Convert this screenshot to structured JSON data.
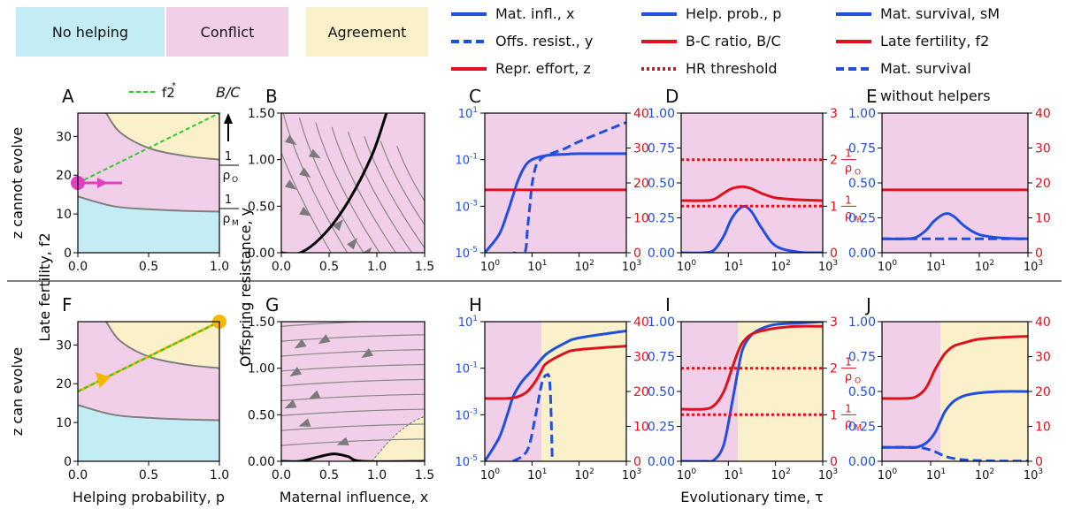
{
  "colors": {
    "no_helping": "#c4ecf5",
    "conflict": "#f1cfe8",
    "agreement": "#faf0ca",
    "blue": "#1f4fe0",
    "red": "#e0101c",
    "green": "#32c832",
    "magenta": "#e040c0",
    "orange": "#f5b800",
    "gray": "#7f7f7f"
  },
  "legend": {
    "regions": [
      "No helping",
      "Conflict",
      "Agreement"
    ],
    "lines": [
      {
        "label": "Mat. infl., x",
        "color": "blue",
        "style": "solid"
      },
      {
        "label": "Offs. resist., y",
        "color": "blue",
        "style": "dashed"
      },
      {
        "label": "Repr. effort, z",
        "color": "red",
        "style": "solid"
      },
      {
        "label": "Help. prob., p",
        "color": "blue",
        "style": "solid"
      },
      {
        "label": "B-C ratio, B/C",
        "color": "red",
        "style": "solid"
      },
      {
        "label": "HR threshold",
        "color": "red",
        "style": "dotted"
      },
      {
        "label": "Mat. survival, sM",
        "color": "blue",
        "style": "solid"
      },
      {
        "label": "Late fertility, f2",
        "color": "red",
        "style": "solid"
      },
      {
        "label": "Mat. survival",
        "label2": "without helpers",
        "color": "blue",
        "style": "dashed"
      }
    ]
  },
  "labels": {
    "row_top": "z cannot evolve",
    "row_bottom": "z can evolve",
    "ylabel_A": "Late fertility, f2",
    "xlabel_A": "Helping probability, p",
    "ylabel_B": "Offspring resistance, y",
    "xlabel_B": "Maternal influence, x",
    "xlabel_time": "Evolutionary time, τ",
    "fstar": "f2*",
    "bc": "B/C",
    "rho_o": "ρO",
    "rho_m": "ρM"
  },
  "chart_data": [
    {
      "panel": "A",
      "type": "area",
      "xlim": [
        0,
        1
      ],
      "ylim": [
        0,
        36
      ],
      "xticks": [
        0.0,
        0.5,
        1.0
      ],
      "yticks": [
        0,
        10,
        20,
        30
      ],
      "lower_boundary": [
        [
          0,
          14.5
        ],
        [
          0.25,
          12
        ],
        [
          0.5,
          11.2
        ],
        [
          0.75,
          10.8
        ],
        [
          1,
          10.6
        ]
      ],
      "upper_boundary": [
        [
          0.2,
          36
        ],
        [
          0.3,
          31
        ],
        [
          0.5,
          27
        ],
        [
          0.75,
          25
        ],
        [
          1,
          24
        ]
      ],
      "fstar_line": [
        [
          0,
          18
        ],
        [
          1,
          36
        ]
      ],
      "point": [
        0,
        18
      ]
    },
    {
      "panel": "B",
      "type": "line",
      "xlim": [
        0,
        1.5
      ],
      "ylim": [
        0,
        1.5
      ],
      "xticks": [
        0.0,
        0.5,
        1.0,
        1.5
      ],
      "yticks": [
        0.0,
        0.5,
        1.0,
        1.5
      ],
      "nullcline": [
        [
          0,
          0
        ],
        [
          0.2,
          0.0
        ],
        [
          0.45,
          0.2
        ],
        [
          0.7,
          0.55
        ],
        [
          0.95,
          1.05
        ],
        [
          1.1,
          1.5
        ]
      ]
    },
    {
      "panel": "C",
      "type": "line",
      "xlog": true,
      "xlim": [
        1,
        1000
      ],
      "ylog": true,
      "ylim": [
        1e-05,
        10
      ],
      "y2lim": [
        0,
        40
      ],
      "xticks": [
        "10^0",
        "10^1",
        "10^2",
        "10^3"
      ],
      "yticks": [
        "10^-5",
        "10^-3",
        "10^-1",
        "10^1"
      ],
      "y2ticks": [
        0,
        10,
        20,
        30,
        40
      ],
      "series": [
        {
          "color": "blue",
          "style": "solid",
          "axis": "left",
          "x": [
            1,
            2,
            3,
            4,
            5,
            7,
            10,
            20,
            50,
            100,
            1000
          ],
          "y": [
            1e-05,
            6e-05,
            0.0005,
            0.003,
            0.012,
            0.05,
            0.1,
            0.15,
            0.17,
            0.18,
            0.18
          ]
        },
        {
          "color": "blue",
          "style": "dashed",
          "axis": "left",
          "x": [
            4,
            7,
            8,
            9,
            10,
            12,
            15,
            20,
            50,
            100,
            1000
          ],
          "y": [
            1e-05,
            1e-05,
            0.0001,
            0.001,
            0.008,
            0.05,
            0.1,
            0.15,
            0.3,
            0.6,
            4
          ]
        },
        {
          "color": "red",
          "style": "solid",
          "axis": "right",
          "x": [
            1,
            1000
          ],
          "y": [
            18,
            18
          ]
        }
      ]
    },
    {
      "panel": "D",
      "type": "line",
      "xlog": true,
      "xlim": [
        1,
        1000
      ],
      "ylim": [
        0,
        1
      ],
      "y2lim": [
        0,
        3
      ],
      "xticks": [
        "10^0",
        "10^1",
        "10^2",
        "10^3"
      ],
      "yticks": [
        0.0,
        0.25,
        0.5,
        0.75,
        1.0
      ],
      "y2ticks": [
        0,
        1,
        2,
        3
      ],
      "series": [
        {
          "color": "blue",
          "style": "solid",
          "axis": "left",
          "x": [
            1,
            3,
            5,
            8,
            12,
            20,
            30,
            50,
            100,
            300,
            1000
          ],
          "y": [
            0,
            0,
            0.02,
            0.12,
            0.25,
            0.33,
            0.3,
            0.18,
            0.05,
            0.005,
            0
          ]
        },
        {
          "color": "red",
          "style": "solid",
          "axis": "right",
          "x": [
            1,
            3,
            5,
            8,
            12,
            20,
            30,
            50,
            100,
            300,
            1000
          ],
          "y": [
            1.12,
            1.12,
            1.15,
            1.28,
            1.38,
            1.42,
            1.38,
            1.28,
            1.18,
            1.14,
            1.12
          ]
        },
        {
          "color": "red",
          "style": "dotted",
          "axis": "right",
          "x": [
            1,
            1000
          ],
          "y": [
            2.0,
            2.0
          ]
        },
        {
          "color": "red",
          "style": "dotted",
          "axis": "right",
          "x": [
            1,
            1000
          ],
          "y": [
            1.0,
            1.0
          ]
        }
      ]
    },
    {
      "panel": "E",
      "type": "line",
      "xlog": true,
      "xlim": [
        1,
        1000
      ],
      "ylim": [
        0,
        1
      ],
      "y2lim": [
        0,
        40
      ],
      "xticks": [
        "10^0",
        "10^1",
        "10^2",
        "10^3"
      ],
      "yticks": [
        0.0,
        0.25,
        0.5,
        0.75,
        1.0
      ],
      "y2ticks": [
        0,
        10,
        20,
        30,
        40
      ],
      "series": [
        {
          "color": "blue",
          "style": "solid",
          "axis": "left",
          "x": [
            1,
            3,
            5,
            8,
            12,
            20,
            30,
            50,
            100,
            300,
            1000
          ],
          "y": [
            0.1,
            0.1,
            0.11,
            0.16,
            0.23,
            0.28,
            0.26,
            0.19,
            0.13,
            0.105,
            0.1
          ]
        },
        {
          "color": "blue",
          "style": "dashed",
          "axis": "left",
          "x": [
            1,
            1000
          ],
          "y": [
            0.1,
            0.1
          ]
        },
        {
          "color": "red",
          "style": "solid",
          "axis": "right",
          "x": [
            1,
            1000
          ],
          "y": [
            18,
            18
          ]
        }
      ]
    },
    {
      "panel": "F",
      "type": "area",
      "xlim": [
        0,
        1
      ],
      "ylim": [
        0,
        36
      ],
      "xticks": [
        0.0,
        0.5,
        1.0
      ],
      "yticks": [
        0,
        10,
        20,
        30
      ],
      "lower_boundary": [
        [
          0,
          14.5
        ],
        [
          0.25,
          12
        ],
        [
          0.5,
          11.2
        ],
        [
          0.75,
          10.8
        ],
        [
          1,
          10.6
        ]
      ],
      "upper_boundary": [
        [
          0.2,
          36
        ],
        [
          0.3,
          31
        ],
        [
          0.5,
          27
        ],
        [
          0.75,
          25
        ],
        [
          1,
          24
        ]
      ],
      "trajectory": [
        [
          0,
          18
        ],
        [
          1,
          36
        ]
      ],
      "point": [
        1,
        36
      ]
    },
    {
      "panel": "G",
      "type": "line",
      "xlim": [
        0,
        1.5
      ],
      "ylim": [
        0,
        1.5
      ],
      "xticks": [
        0.0,
        0.5,
        1.0,
        1.5
      ],
      "yticks": [
        0.0,
        0.5,
        1.0,
        1.5
      ],
      "nullcline": [
        [
          0,
          0
        ],
        [
          0.2,
          0.0
        ],
        [
          0.4,
          0.05
        ],
        [
          0.55,
          0.08
        ],
        [
          0.7,
          0.05
        ],
        [
          0.85,
          0.0
        ],
        [
          1.5,
          0.0
        ]
      ]
    },
    {
      "panel": "H",
      "type": "line",
      "xlog": true,
      "xlim": [
        1,
        1000
      ],
      "ylog": true,
      "ylim": [
        1e-05,
        10
      ],
      "y2lim": [
        0,
        40
      ],
      "xticks": [
        "10^0",
        "10^1",
        "10^2",
        "10^3"
      ],
      "yticks": [
        "10^-5",
        "10^-3",
        "10^-1",
        "10^1"
      ],
      "y2ticks": [
        0,
        10,
        20,
        30,
        40
      ],
      "series": [
        {
          "color": "blue",
          "style": "solid",
          "axis": "left",
          "x": [
            1,
            2,
            3,
            4,
            6,
            10,
            20,
            50,
            100,
            1000
          ],
          "y": [
            1e-05,
            0.0001,
            0.001,
            0.006,
            0.025,
            0.08,
            0.4,
            1.2,
            2,
            4
          ]
        },
        {
          "color": "blue",
          "style": "dashed",
          "axis": "left",
          "x": [
            4,
            8,
            12,
            16,
            20,
            24,
            27
          ],
          "y": [
            1e-05,
            3e-05,
            0.001,
            0.02,
            0.05,
            0.02,
            1e-05
          ]
        },
        {
          "color": "red",
          "style": "solid",
          "axis": "right",
          "x": [
            1,
            3,
            5,
            8,
            12,
            16,
            20,
            50,
            100,
            1000
          ],
          "y": [
            18,
            18,
            18.5,
            20,
            23,
            26,
            28,
            31,
            32,
            33
          ]
        }
      ]
    },
    {
      "panel": "I",
      "type": "line",
      "xlog": true,
      "xlim": [
        1,
        1000
      ],
      "ylim": [
        0,
        1
      ],
      "y2lim": [
        0,
        3
      ],
      "xticks": [
        "10^0",
        "10^1",
        "10^2",
        "10^3"
      ],
      "yticks": [
        0.0,
        0.25,
        0.5,
        0.75,
        1.0
      ],
      "y2ticks": [
        0,
        1,
        2,
        3
      ],
      "series": [
        {
          "color": "blue",
          "style": "solid",
          "axis": "left",
          "x": [
            1,
            3,
            5,
            8,
            12,
            16,
            20,
            30,
            50,
            100,
            300,
            1000
          ],
          "y": [
            0,
            0,
            0.01,
            0.12,
            0.42,
            0.65,
            0.8,
            0.9,
            0.95,
            0.98,
            0.99,
            1
          ]
        },
        {
          "color": "red",
          "style": "solid",
          "axis": "right",
          "x": [
            1,
            3,
            5,
            8,
            12,
            16,
            20,
            30,
            50,
            100,
            300,
            1000
          ],
          "y": [
            1.12,
            1.12,
            1.2,
            1.5,
            2.0,
            2.35,
            2.55,
            2.72,
            2.8,
            2.86,
            2.9,
            2.9
          ]
        },
        {
          "color": "red",
          "style": "dotted",
          "axis": "right",
          "x": [
            1,
            1000
          ],
          "y": [
            2.0,
            2.0
          ]
        },
        {
          "color": "red",
          "style": "dotted",
          "axis": "right",
          "x": [
            1,
            1000
          ],
          "y": [
            1.0,
            1.0
          ]
        }
      ]
    },
    {
      "panel": "J",
      "type": "line",
      "xlog": true,
      "xlim": [
        1,
        1000
      ],
      "ylim": [
        0,
        1
      ],
      "y2lim": [
        0,
        40
      ],
      "xticks": [
        "10^0",
        "10^1",
        "10^2",
        "10^3"
      ],
      "yticks": [
        0.0,
        0.25,
        0.5,
        0.75,
        1.0
      ],
      "y2ticks": [
        0,
        10,
        20,
        30,
        40
      ],
      "series": [
        {
          "color": "blue",
          "style": "solid",
          "axis": "left",
          "x": [
            1,
            3,
            5,
            8,
            12,
            16,
            20,
            30,
            50,
            100,
            300,
            1000
          ],
          "y": [
            0.1,
            0.1,
            0.1,
            0.13,
            0.2,
            0.29,
            0.36,
            0.43,
            0.47,
            0.49,
            0.5,
            0.5
          ]
        },
        {
          "color": "blue",
          "style": "dashed",
          "axis": "left",
          "x": [
            1,
            5,
            8,
            12,
            16,
            20,
            30,
            50,
            100,
            300,
            1000
          ],
          "y": [
            0.1,
            0.1,
            0.09,
            0.07,
            0.05,
            0.035,
            0.02,
            0.01,
            0.005,
            0.002,
            0.001
          ]
        },
        {
          "color": "red",
          "style": "solid",
          "axis": "right",
          "x": [
            1,
            3,
            5,
            8,
            12,
            16,
            20,
            30,
            50,
            100,
            300,
            1000
          ],
          "y": [
            18,
            18,
            18.5,
            21,
            26,
            29,
            31,
            33,
            34,
            35,
            35.5,
            35.8
          ]
        }
      ]
    }
  ]
}
